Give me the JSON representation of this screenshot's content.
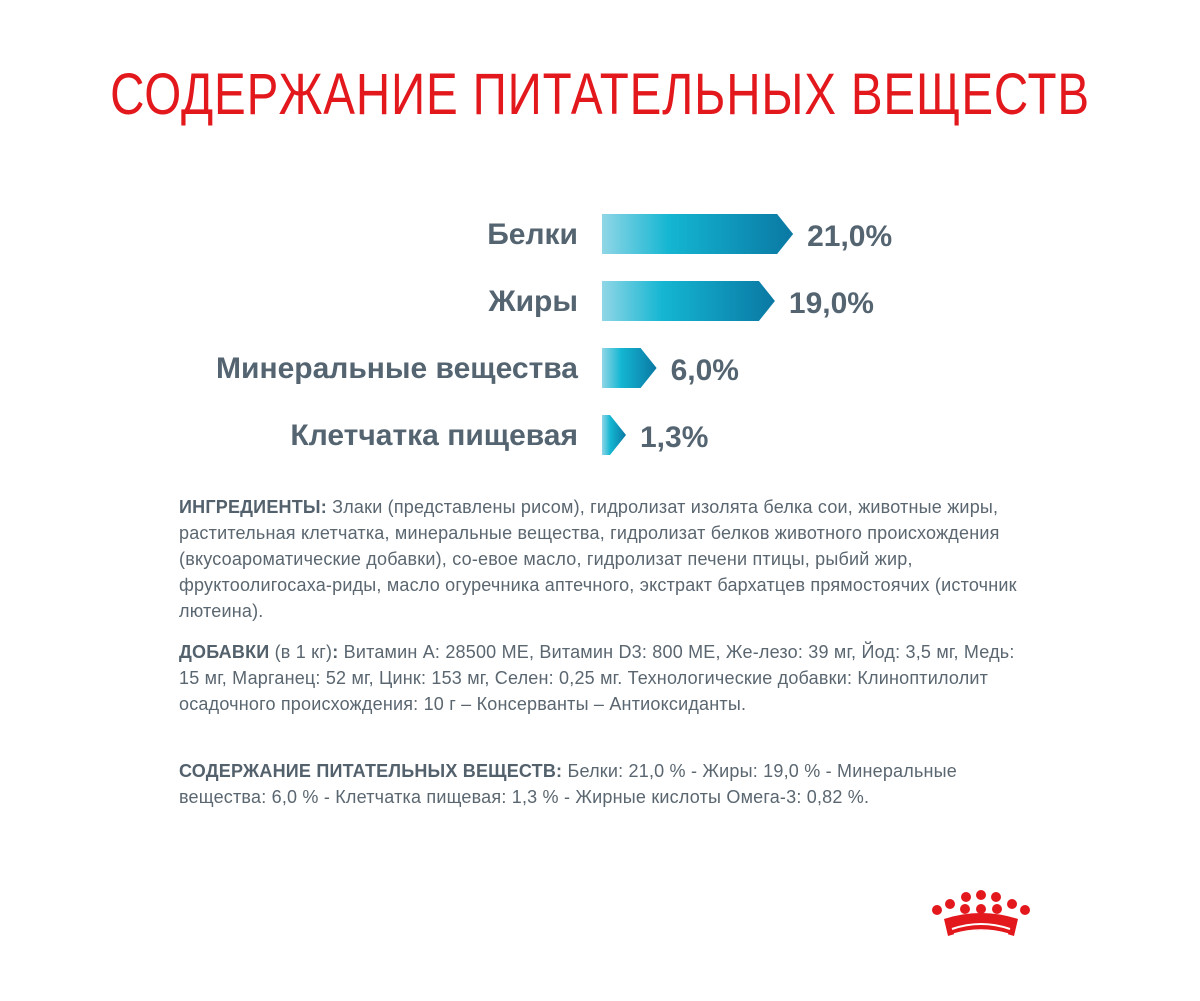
{
  "title": "СОДЕРЖАНИЕ ПИТАТЕЛЬНЫХ ВЕЩЕСТВ",
  "colors": {
    "title": "#e3181d",
    "bar_light": "#88d4e4",
    "bar_mid": "#12b3cf",
    "bar_dark": "#0b7ea6",
    "text": "#546470",
    "logo": "#e3181d"
  },
  "chart_data": {
    "type": "bar",
    "orientation": "horizontal",
    "categories": [
      "Белки",
      "Жиры",
      "Минеральные вещества",
      "Клетчатка пищевая"
    ],
    "values": [
      21.0,
      19.0,
      6.0,
      1.3
    ],
    "value_labels": [
      "21,0%",
      "19,0%",
      "6,0%",
      "1,3%"
    ],
    "title": "",
    "xlabel": "",
    "ylabel": "",
    "grid": false
  },
  "ingredients": {
    "label": "ИНГРЕДИЕНТЫ:",
    "text": " Злаки (представлены рисом), гидролизат изолята белка сои, животные жиры, растительная клетчатка, минеральные вещества, гидролизат белков животного происхождения (вкусоароматические добавки), со-евое масло, гидролизат печени птицы, рыбий жир, фруктоолигосаха-риды, масло огуречника аптечного, экстракт бархатцев прямостоячих (источник лютеина)."
  },
  "additives": {
    "label": "ДОБАВКИ",
    "qualifier": " (в 1 кг)",
    "colon": ":",
    "text": " Витамин А: 28500 МЕ, Витамин D3: 800 МЕ, Же-лезо: 39 мг, Йод: 3,5 мг, Медь: 15 мг, Марганец: 52 мг, Цинк: 153  мг, Селен: 0,25 мг. Технологические добавки: Клиноптилолит осадочного происхождения: 10 г – Консерванты – Антиоксиданты."
  },
  "nutrients": {
    "label": "СОДЕРЖАНИЕ ПИТАТЕЛЬНЫХ ВЕЩЕСТВ:",
    "text": " Белки: 21,0 % - Жиры: 19,0 % - Минеральные вещества: 6,0 %  - Клетчатка пищевая: 1,3 % - Жирные кислоты Омега-3: 0,82 %."
  },
  "logo": {
    "icon": "crown-logo-icon"
  }
}
